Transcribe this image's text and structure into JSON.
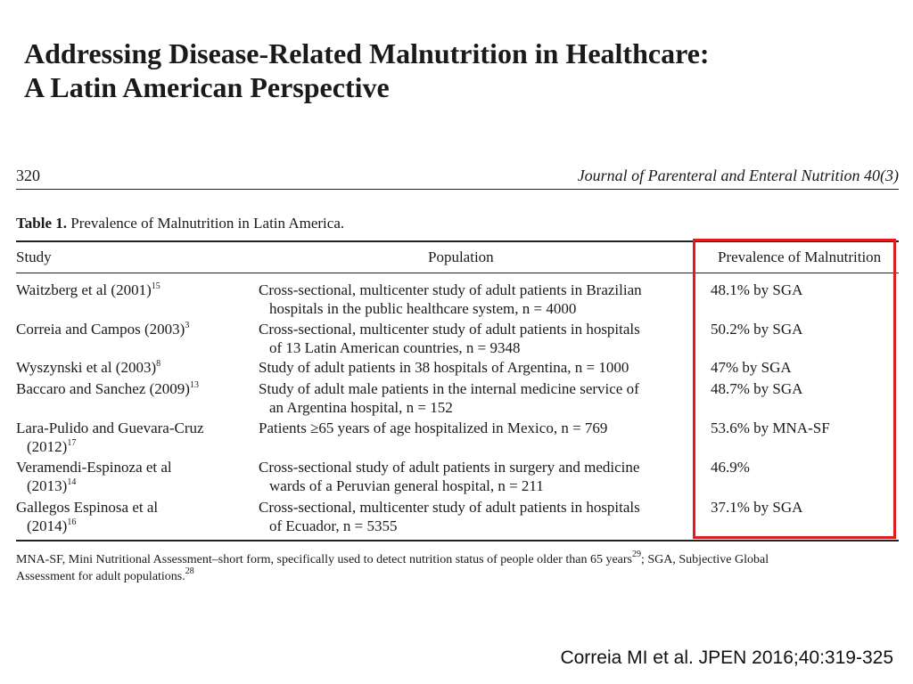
{
  "slide_title": {
    "line1": "Addressing Disease-Related Malnutrition in Healthcare:",
    "line2": "A Latin American Perspective"
  },
  "journal_header": {
    "page_number": "320",
    "journal": "Journal of Parenteral and Enteral Nutrition 40(3)"
  },
  "table": {
    "caption_label": "Table 1.",
    "caption_text": "Prevalence of Malnutrition in Latin America.",
    "columns": [
      "Study",
      "Population",
      "Prevalence of Malnutrition"
    ],
    "rows": [
      {
        "study_lines": [
          "Waitzberg et al (2001)"
        ],
        "ref": "15",
        "population_lines": [
          "Cross-sectional, multicenter study of adult patients in Brazilian",
          "hospitals in the public healthcare system, n = 4000"
        ],
        "prevalence": "48.1% by SGA"
      },
      {
        "study_lines": [
          "Correia and Campos (2003)"
        ],
        "ref": "3",
        "population_lines": [
          "Cross-sectional, multicenter study of adult patients in hospitals",
          "of 13 Latin American countries, n = 9348"
        ],
        "prevalence": "50.2% by SGA"
      },
      {
        "study_lines": [
          "Wyszynski et al (2003)"
        ],
        "ref": "8",
        "population_lines": [
          "Study of adult patients in 38 hospitals of Argentina, n = 1000"
        ],
        "prevalence": "47% by SGA"
      },
      {
        "study_lines": [
          "Baccaro and Sanchez (2009)"
        ],
        "ref": "13",
        "population_lines": [
          "Study of adult male patients in the internal medicine service of",
          "an Argentina hospital, n = 152"
        ],
        "prevalence": "48.7% by SGA"
      },
      {
        "study_lines": [
          "Lara-Pulido and Guevara-Cruz",
          "(2012)"
        ],
        "ref": "17",
        "population_lines": [
          "Patients ≥65 years of age hospitalized in Mexico, n = 769"
        ],
        "prevalence": "53.6% by MNA-SF"
      },
      {
        "study_lines": [
          "Veramendi-Espinoza et al",
          "(2013)"
        ],
        "ref": "14",
        "population_lines": [
          "Cross-sectional study of adult patients in surgery and medicine",
          "wards of a Peruvian general hospital, n = 211"
        ],
        "prevalence": "46.9%"
      },
      {
        "study_lines": [
          "Gallegos Espinosa et al",
          "(2014)"
        ],
        "ref": "16",
        "population_lines": [
          "Cross-sectional, multicenter study of adult patients in hospitals",
          "of Ecuador, n = 5355"
        ],
        "prevalence": "37.1% by SGA"
      }
    ],
    "footnote": {
      "part1": "MNA-SF, Mini Nutritional Assessment–short form, specifically used to detect nutrition status of people older than 65 years",
      "ref1": "29",
      "part2": "; SGA, Subjective Global",
      "part3": "Assessment for adult populations.",
      "ref2": "28"
    }
  },
  "highlight_color": "#e31b1b",
  "citation": "Correia MI et al. JPEN 2016;40:319-325"
}
